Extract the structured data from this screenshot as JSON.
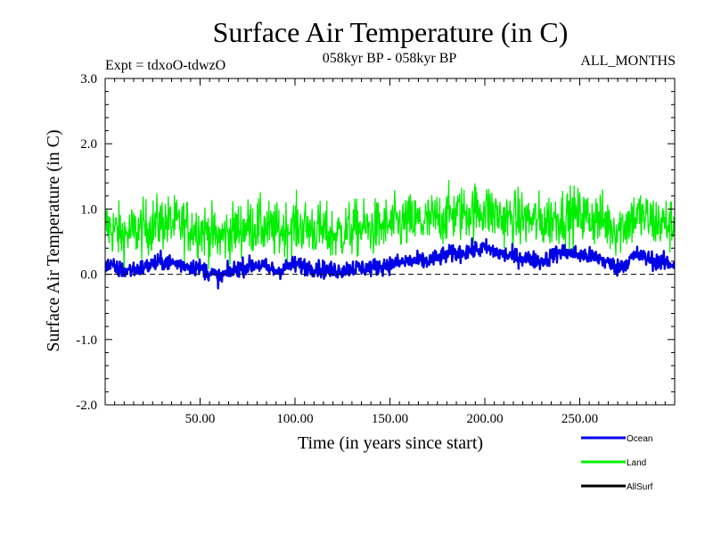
{
  "chart_data": {
    "type": "line",
    "title": "Surface Air Temperature (in C)",
    "experiment": "Expt = tdxoO-tdwzO",
    "period": "058kyr BP - 058kyr BP",
    "season": "ALL_MONTHS",
    "xlabel": "Time (in years since start)",
    "ylabel": "Surface Air Temperature (in C)",
    "xlim": [
      0,
      300
    ],
    "ylim": [
      -2.0,
      3.0
    ],
    "x_ticks": [
      {
        "value": 50,
        "label": "50.00"
      },
      {
        "value": 100,
        "label": "100.00"
      },
      {
        "value": 150,
        "label": "150.00"
      },
      {
        "value": 200,
        "label": "200.00"
      },
      {
        "value": 250,
        "label": "250.00"
      }
    ],
    "y_ticks": [
      {
        "value": -2.0,
        "label": "-2.0"
      },
      {
        "value": -1.0,
        "label": "-1.0"
      },
      {
        "value": 0.0,
        "label": "0.0"
      },
      {
        "value": 1.0,
        "label": "1.0"
      },
      {
        "value": 2.0,
        "label": "2.0"
      },
      {
        "value": 3.0,
        "label": "3.0"
      }
    ],
    "zero_line": true,
    "series": [
      {
        "name": "Ocean",
        "color": "#0000e6",
        "x": [
          0,
          10,
          20,
          30,
          40,
          50,
          60,
          70,
          80,
          90,
          100,
          110,
          120,
          130,
          140,
          150,
          160,
          170,
          180,
          190,
          200,
          210,
          220,
          230,
          240,
          250,
          260,
          270,
          280,
          290,
          300
        ],
        "values": [
          0.15,
          0.05,
          0.1,
          0.2,
          0.15,
          0.1,
          -0.05,
          0.1,
          0.15,
          0.05,
          0.15,
          0.1,
          0.05,
          0.1,
          0.1,
          0.15,
          0.2,
          0.2,
          0.3,
          0.35,
          0.4,
          0.3,
          0.25,
          0.2,
          0.35,
          0.3,
          0.25,
          0.1,
          0.3,
          0.2,
          0.15
        ]
      },
      {
        "name": "Land",
        "color": "#00ee00",
        "x": [
          0,
          10,
          20,
          30,
          40,
          50,
          60,
          70,
          80,
          90,
          100,
          110,
          120,
          130,
          140,
          150,
          160,
          170,
          180,
          190,
          200,
          210,
          220,
          230,
          240,
          250,
          260,
          270,
          280,
          290,
          300
        ],
        "values": [
          0.75,
          0.6,
          0.7,
          0.8,
          0.75,
          0.7,
          0.55,
          0.7,
          0.75,
          0.65,
          0.75,
          0.7,
          0.6,
          0.7,
          0.7,
          0.75,
          0.8,
          0.8,
          0.9,
          0.95,
          1.0,
          0.85,
          0.85,
          0.8,
          0.9,
          0.9,
          0.85,
          0.7,
          0.9,
          0.8,
          0.75
        ]
      },
      {
        "name": "AllSurf",
        "color": "#000000",
        "x": [],
        "values": []
      }
    ],
    "legend_position": "bottom-right"
  }
}
